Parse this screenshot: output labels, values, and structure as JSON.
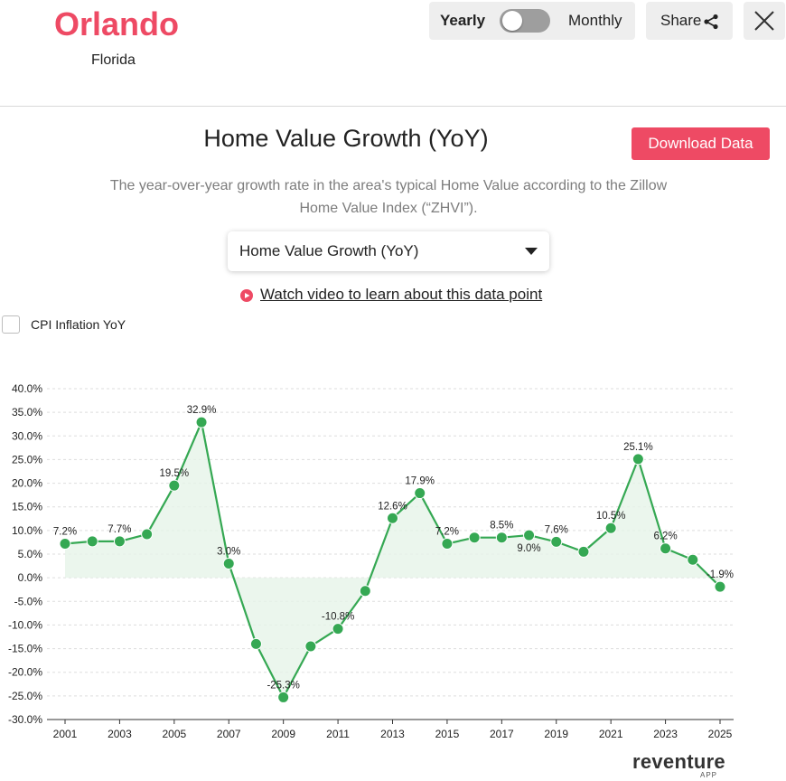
{
  "header": {
    "city": "Orlando",
    "state": "Florida",
    "toggle": {
      "left_label": "Yearly",
      "right_label": "Monthly",
      "selected": "Yearly"
    },
    "share_label": "Share"
  },
  "content": {
    "title": "Home Value Growth (YoY)",
    "download_label": "Download Data",
    "description": "The year-over-year growth rate in the area's typical Home Value according to the Zillow Home Value Index (“ZHVI”).",
    "metric_select": "Home Value Growth (YoY)",
    "video_link": "Watch video to learn about this data point",
    "cpi_label": "CPI Inflation YoY",
    "cpi_checked": false
  },
  "colors": {
    "brand": "#ee4a64",
    "line": "#35a853",
    "area": "#e6f4e9",
    "grid": "#dddddd"
  },
  "brand": {
    "name": "reventure",
    "sub": "APP"
  },
  "chart_data": {
    "type": "line",
    "title": "",
    "xlabel": "",
    "ylabel": "",
    "x": [
      2001,
      2002,
      2003,
      2004,
      2005,
      2006,
      2007,
      2008,
      2009,
      2010,
      2011,
      2012,
      2013,
      2014,
      2015,
      2016,
      2017,
      2018,
      2019,
      2020,
      2021,
      2022,
      2023,
      2024,
      2025
    ],
    "values": [
      7.2,
      7.7,
      7.7,
      9.2,
      19.5,
      32.9,
      3.0,
      -14.0,
      -25.3,
      -14.5,
      -10.8,
      -2.8,
      12.6,
      17.9,
      7.2,
      8.5,
      8.5,
      9.0,
      7.6,
      5.5,
      10.5,
      25.1,
      6.2,
      3.8,
      -1.9
    ],
    "data_labels": [
      "7.2%",
      "",
      "7.7%",
      "",
      "19.5%",
      "32.9%",
      "3.0%",
      "",
      "-25.3%",
      "",
      "-10.8%",
      "",
      "12.6%",
      "17.9%",
      "7.2%",
      "",
      "8.5%",
      "9.0%",
      "7.6%",
      "",
      "10.5%",
      "25.1%",
      "6.2%",
      "",
      "-1.9%"
    ],
    "x_ticks": [
      "2001",
      "2003",
      "2005",
      "2007",
      "2009",
      "2011",
      "2013",
      "2015",
      "2017",
      "2019",
      "2021",
      "2023",
      "2025"
    ],
    "y_ticks": [
      "40.0%",
      "35.0%",
      "30.0%",
      "25.0%",
      "20.0%",
      "15.0%",
      "10.0%",
      "5.0%",
      "0.0%",
      "-5.0%",
      "-10.0%",
      "-15.0%",
      "-20.0%",
      "-25.0%",
      "-30.0%"
    ],
    "ylim": [
      -30,
      40
    ],
    "xlim": [
      2001,
      2025
    ],
    "grid": true,
    "legend": "none"
  }
}
